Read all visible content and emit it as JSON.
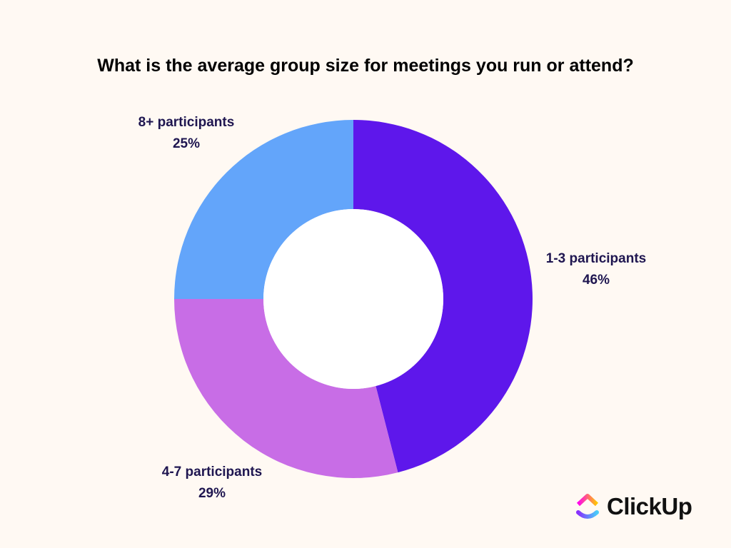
{
  "chart_data": {
    "type": "pie",
    "donut": true,
    "title": "What is the average group size for meetings you run or attend?",
    "categories": [
      "1-3 participants",
      "4-7 participants",
      "8+ participants"
    ],
    "values": [
      46,
      29,
      25
    ],
    "value_labels": [
      "46%",
      "29%",
      "25%"
    ],
    "colors": [
      "#5e17eb",
      "#c86de6",
      "#63a5fa"
    ],
    "start": "top",
    "direction": "clockwise",
    "legend": "none"
  },
  "brand": {
    "name": "ClickUp"
  }
}
